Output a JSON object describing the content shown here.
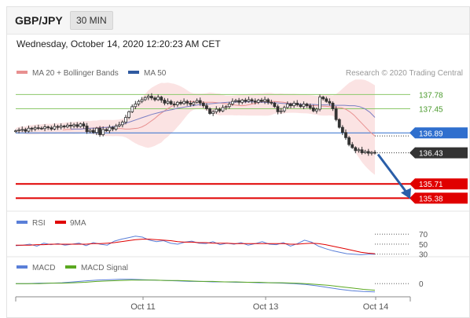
{
  "header": {
    "symbol": "GBP/JPY",
    "timeframe": "30 MIN"
  },
  "datetime": "Wednesday, October 14, 2020 12:20:23 AM CET",
  "legend": {
    "bb": "MA 20 + Bollinger Bands",
    "ma50": "MA 50",
    "credit": "Research © 2020 Trading Central"
  },
  "colors": {
    "price": "#333333",
    "ma20": "#e89090",
    "bb_fill": "#fbe3e3",
    "ma50": "#7b7fc4",
    "resistance": "#8cc86a",
    "current": "#2f6fce",
    "support": "#e00000",
    "arrow": "#2a5ea8",
    "rsi": "#5a7fd8",
    "rsi_ma": "#e00000",
    "macd": "#5a7fd8",
    "macd_signal": "#5aa820"
  },
  "chart_data": [
    {
      "type": "candlestick",
      "panel": "price",
      "x_ticks": [
        "Oct 11",
        "Oct 13",
        "Oct 14"
      ],
      "ylim": [
        135.15,
        138.15
      ],
      "levels": [
        {
          "value": 137.78,
          "label": "137.78",
          "kind": "resistance"
        },
        {
          "value": 137.45,
          "label": "137.45",
          "kind": "resistance"
        },
        {
          "value": 136.89,
          "label": "136.89",
          "kind": "current"
        },
        {
          "value": 136.43,
          "label": "136.43",
          "kind": "last"
        },
        {
          "value": 135.71,
          "label": "135.71",
          "kind": "support"
        },
        {
          "value": 135.38,
          "label": "135.38",
          "kind": "support"
        }
      ],
      "projection": {
        "from": 136.43,
        "to": 135.38
      },
      "close": [
        136.94,
        136.96,
        136.97,
        136.93,
        137.0,
        136.98,
        137.01,
        137.0,
        136.99,
        137.03,
        137.01,
        136.98,
        137.04,
        137.02,
        137.05,
        137.03,
        137.07,
        137.05,
        137.08,
        137.04,
        137.1,
        137.05,
        136.92,
        136.95,
        136.9,
        137.0,
        136.85,
        136.97,
        136.94,
        137.02,
        136.98,
        137.05,
        137.08,
        137.14,
        137.25,
        137.38,
        137.5,
        137.56,
        137.62,
        137.66,
        137.71,
        137.74,
        137.7,
        137.66,
        137.72,
        137.65,
        137.58,
        137.62,
        137.56,
        137.54,
        137.6,
        137.57,
        137.62,
        137.58,
        137.55,
        137.6,
        137.64,
        137.58,
        137.52,
        137.45,
        137.34,
        137.38,
        137.44,
        137.4,
        137.48,
        137.5,
        137.56,
        137.62,
        137.64,
        137.6,
        137.65,
        137.62,
        137.66,
        137.63,
        137.6,
        137.65,
        137.62,
        137.66,
        137.6,
        137.58,
        137.5,
        137.38,
        137.4,
        137.48,
        137.56,
        137.52,
        137.58,
        137.54,
        137.5,
        137.56,
        137.52,
        137.47,
        137.4,
        137.44,
        137.72,
        137.68,
        137.62,
        137.58,
        137.45,
        137.2,
        137.02,
        136.9,
        136.78,
        136.62,
        136.55,
        136.48,
        136.5,
        136.43,
        136.46,
        136.42,
        136.44,
        136.43
      ],
      "ma20": [
        136.96,
        136.97,
        136.97,
        136.98,
        136.98,
        136.99,
        137.0,
        137.0,
        137.01,
        137.02,
        137.02,
        137.01,
        137.0,
        136.99,
        136.99,
        136.98,
        136.98,
        136.99,
        137.0,
        137.03,
        137.08,
        137.15,
        137.22,
        137.3,
        137.37,
        137.44,
        137.5,
        137.55,
        137.58,
        137.6,
        137.61,
        137.62,
        137.61,
        137.61,
        137.6,
        137.6,
        137.6,
        137.59,
        137.58,
        137.57,
        137.55,
        137.54,
        137.53,
        137.52,
        137.53,
        137.55,
        137.57,
        137.59,
        137.61,
        137.62,
        137.62,
        137.62,
        137.61,
        137.6,
        137.58,
        137.57,
        137.56,
        137.55,
        137.54,
        137.53,
        137.52,
        137.52,
        137.51,
        137.51,
        137.5,
        137.49,
        137.48,
        137.47,
        137.44,
        137.38,
        137.3,
        137.2,
        137.1,
        137.0,
        136.9,
        136.82
      ],
      "ma50": [
        136.98,
        136.98,
        136.98,
        136.99,
        137.0,
        137.0,
        137.01,
        137.02,
        137.03,
        137.05,
        137.08,
        137.12,
        137.16,
        137.2,
        137.24,
        137.28,
        137.32,
        137.35,
        137.38,
        137.41,
        137.43,
        137.46,
        137.48,
        137.5,
        137.52,
        137.54,
        137.55,
        137.56,
        137.57,
        137.58,
        137.59,
        137.6,
        137.6,
        137.61,
        137.61,
        137.61,
        137.61,
        137.6,
        137.6,
        137.59,
        137.59,
        137.58,
        137.57,
        137.57,
        137.56,
        137.56,
        137.55,
        137.55,
        137.55,
        137.54,
        137.54,
        137.54,
        137.53,
        137.53,
        137.53,
        137.52,
        137.52,
        137.5,
        137.45,
        137.37,
        137.25
      ]
    },
    {
      "type": "line",
      "panel": "rsi",
      "ylim": [
        28,
        75
      ],
      "reference_levels": [
        70,
        50,
        30
      ],
      "series": [
        {
          "name": "RSI",
          "values": [
            47,
            48,
            50,
            46,
            52,
            49,
            51,
            48,
            50,
            52,
            47,
            53,
            50,
            48,
            56,
            60,
            63,
            66,
            64,
            58,
            55,
            57,
            52,
            50,
            54,
            56,
            52,
            51,
            55,
            49,
            52,
            50,
            53,
            48,
            51,
            55,
            50,
            49,
            53,
            46,
            51,
            58,
            54,
            46,
            41,
            37,
            34,
            31,
            30,
            29,
            30,
            30
          ]
        },
        {
          "name": "9MA",
          "values": [
            48,
            48,
            48,
            49,
            49,
            50,
            50,
            50,
            50,
            50,
            50,
            51,
            51,
            52,
            53,
            55,
            57,
            59,
            60,
            60,
            59,
            58,
            57,
            55,
            54,
            54,
            53,
            53,
            52,
            52,
            52,
            51,
            51,
            51,
            51,
            51,
            51,
            51,
            51,
            50,
            50,
            51,
            52,
            51,
            49,
            46,
            43,
            40,
            37,
            34,
            32,
            31
          ]
        }
      ]
    },
    {
      "type": "line",
      "panel": "macd",
      "ylim": [
        -0.3,
        0.2
      ],
      "reference_levels": [
        0
      ],
      "series": [
        {
          "name": "MACD",
          "values": [
            0.0,
            0.0,
            0.01,
            0.01,
            0.02,
            0.04,
            0.06,
            0.08,
            0.09,
            0.1,
            0.1,
            0.09,
            0.08,
            0.07,
            0.06,
            0.05,
            0.05,
            0.04,
            0.04,
            0.03,
            0.03,
            0.02,
            0.02,
            0.01,
            0.0,
            -0.02,
            -0.05,
            -0.09,
            -0.13,
            -0.16,
            -0.18,
            -0.19
          ]
        },
        {
          "name": "MACD Signal",
          "values": [
            0.0,
            0.0,
            0.0,
            0.01,
            0.01,
            0.02,
            0.03,
            0.05,
            0.06,
            0.07,
            0.08,
            0.08,
            0.08,
            0.07,
            0.07,
            0.06,
            0.05,
            0.05,
            0.04,
            0.04,
            0.03,
            0.03,
            0.02,
            0.02,
            0.01,
            0.0,
            -0.02,
            -0.04,
            -0.07,
            -0.1,
            -0.13,
            -0.15
          ]
        }
      ]
    }
  ]
}
